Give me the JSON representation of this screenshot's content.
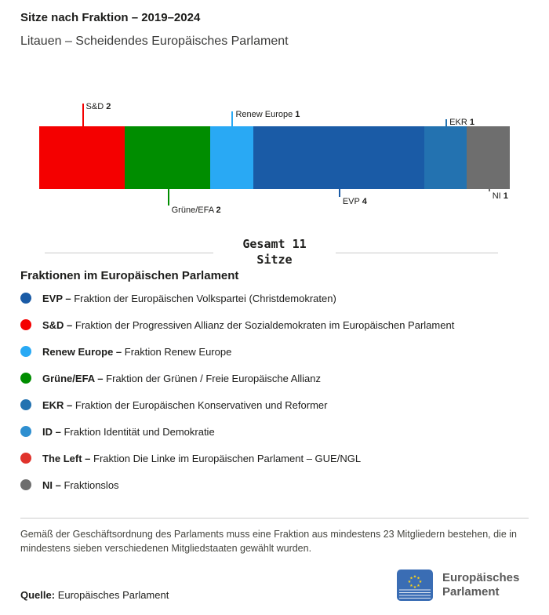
{
  "header": {
    "title": "Sitze nach Fraktion – 2019–2024",
    "subtitle": "Litauen – Scheidendes Europäisches Parlament"
  },
  "chart_data": {
    "type": "bar",
    "title": "Sitze nach Fraktion – 2019–2024",
    "subtitle": "Litauen – Scheidendes Europäisches Parlament",
    "categories": [
      "S&D",
      "Grüne/EFA",
      "Renew Europe",
      "EVP",
      "EKR",
      "NI"
    ],
    "values": [
      2,
      2,
      1,
      4,
      1,
      1
    ],
    "total_seats": 11,
    "total_label": "Gesamt 11",
    "total_sublabel": "Sitze",
    "segments": [
      {
        "label": "S&D",
        "seats": 2,
        "color": "#f40000",
        "callout_side": "top",
        "callout_len": 29
      },
      {
        "label": "Grüne/EFA",
        "seats": 2,
        "color": "#008d00",
        "callout_side": "bottom",
        "callout_len": 21
      },
      {
        "label": "Renew Europe",
        "seats": 1,
        "color": "#29a9f4",
        "callout_side": "top",
        "callout_len": 19
      },
      {
        "label": "EVP",
        "seats": 4,
        "color": "#1a5ba6",
        "callout_side": "bottom",
        "callout_len": 10
      },
      {
        "label": "EKR",
        "seats": 1,
        "color": "#2372b0",
        "callout_side": "top",
        "callout_len": 9
      },
      {
        "label": "NI",
        "seats": 1,
        "color": "#6e6e6e",
        "callout_side": "bottom",
        "callout_len": 3
      }
    ]
  },
  "legend": {
    "heading": "Fraktionen im Europäischen Parlament",
    "items": [
      {
        "abbr": "EVP –",
        "desc": "Fraktion der Europäischen Volkspartei (Christdemokraten)",
        "color": "#1a5ba6"
      },
      {
        "abbr": "S&D –",
        "desc": "Fraktion der Progressiven Allianz der Sozialdemokraten im Europäischen Parlament",
        "color": "#f40000"
      },
      {
        "abbr": "Renew Europe –",
        "desc": "Fraktion Renew Europe",
        "color": "#29a9f4"
      },
      {
        "abbr": "Grüne/EFA –",
        "desc": "Fraktion der Grünen / Freie Europäische Allianz",
        "color": "#008d00"
      },
      {
        "abbr": "EKR –",
        "desc": "Fraktion der Europäischen Konservativen und Reformer",
        "color": "#2372b0"
      },
      {
        "abbr": "ID –",
        "desc": "Fraktion Identität und Demokratie",
        "color": "#2e8fd0"
      },
      {
        "abbr": "The Left –",
        "desc": "Fraktion Die Linke im Europäischen Parlament – GUE/NGL",
        "color": "#e0332c"
      },
      {
        "abbr": "NI –",
        "desc": "Fraktionslos",
        "color": "#6e6e6e"
      }
    ]
  },
  "footer": {
    "note": "Gemäß der Geschäftsordnung des Parlaments muss eine Fraktion aus mindestens 23 Mitgliedern bestehen, die in mindestens sieben verschiedenen Mitgliedstaaten gewählt wurden.",
    "source_label": "Quelle:",
    "source_text": "Europäisches Parlament",
    "logo_text_line1": "Europäisches",
    "logo_text_line2": "Parlament"
  }
}
